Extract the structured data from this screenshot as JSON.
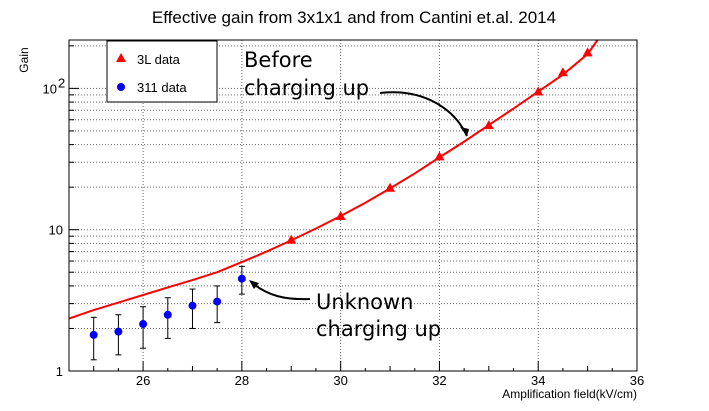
{
  "chart_data": {
    "type": "scatter",
    "title": "Effective gain from 3x1x1 and from Cantini et.al. 2014",
    "xlabel": "Amplification field(kV/cm)",
    "ylabel": "Gain",
    "xlim": [
      24.5,
      36
    ],
    "ylim": [
      1,
      220
    ],
    "yscale": "log",
    "grid": true,
    "legend_position": "top-left",
    "x_ticks": [
      26,
      28,
      30,
      32,
      34,
      36
    ],
    "y_ticks": [
      {
        "value": 1,
        "label": "1"
      },
      {
        "value": 10,
        "label": "10"
      },
      {
        "value": 100,
        "label": "10",
        "exponent": "2"
      }
    ],
    "series": [
      {
        "name": "3L data",
        "marker": "triangle",
        "color": "#ff0000",
        "x": [
          29,
          30,
          31,
          32,
          33,
          34,
          34.5,
          35
        ],
        "y": [
          8.5,
          12.5,
          19.8,
          33,
          55,
          95,
          130,
          180
        ]
      },
      {
        "name": "311 data",
        "marker": "circle",
        "color": "#0000ff",
        "x": [
          25,
          25.5,
          26,
          26.5,
          27,
          27.5,
          28
        ],
        "y": [
          1.8,
          1.9,
          2.15,
          2.5,
          2.9,
          3.1,
          4.5
        ],
        "err_low": [
          0.6,
          0.6,
          0.7,
          0.8,
          0.9,
          0.9,
          1.0
        ],
        "err_high": [
          0.6,
          0.6,
          0.7,
          0.8,
          0.9,
          0.9,
          1.0
        ]
      }
    ],
    "fit": {
      "color": "#ff0000",
      "x": [
        24.5,
        25,
        25.5,
        26,
        26.5,
        27,
        27.5,
        28,
        28.5,
        29,
        29.5,
        30,
        30.5,
        31,
        31.5,
        32,
        32.5,
        33,
        33.5,
        34,
        34.5,
        35,
        35.2
      ],
      "y": [
        2.35,
        2.7,
        3.05,
        3.45,
        3.9,
        4.4,
        5.0,
        5.9,
        7.0,
        8.4,
        10.2,
        12.5,
        15.5,
        19.6,
        25,
        32.5,
        42,
        55,
        72,
        95,
        125,
        175,
        220
      ]
    },
    "annotations": [
      {
        "line1": "Before",
        "line2": "charging up"
      },
      {
        "line1": "Unknown",
        "line2": "charging up"
      }
    ]
  }
}
